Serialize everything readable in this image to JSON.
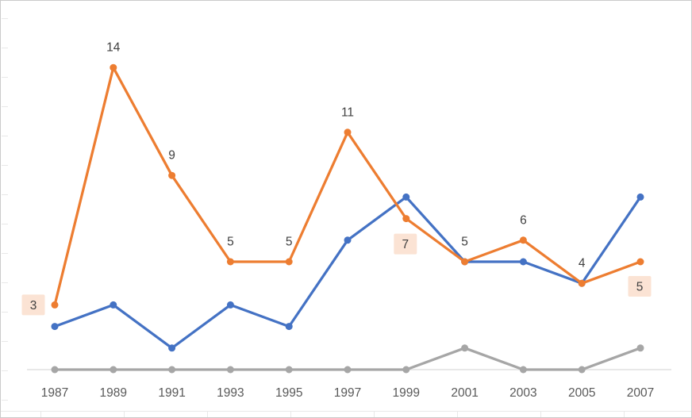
{
  "chart_data": {
    "type": "line",
    "title": "",
    "xlabel": "",
    "ylabel": "",
    "categories": [
      "1987",
      "1989",
      "1991",
      "1993",
      "1995",
      "1997",
      "1999",
      "2001",
      "2003",
      "2005",
      "2007"
    ],
    "series": [
      {
        "name": "gray-series",
        "color": "#a6a6a6",
        "values": [
          0,
          0,
          0,
          0,
          0,
          0,
          0,
          1,
          0,
          0,
          1
        ],
        "labels": null
      },
      {
        "name": "blue-series",
        "color": "#4472c4",
        "values": [
          2,
          3,
          1,
          3,
          2,
          6,
          8,
          5,
          5,
          4,
          8
        ],
        "labels": null
      },
      {
        "name": "orange-series",
        "color": "#ed7d31",
        "values": [
          3,
          14,
          9,
          5,
          5,
          11,
          7,
          5,
          6,
          4,
          5
        ],
        "labels": [
          {
            "text": "3",
            "highlight": true,
            "dx": -27,
            "dy": 0
          },
          {
            "text": "14",
            "highlight": false
          },
          {
            "text": "9",
            "highlight": false
          },
          {
            "text": "5",
            "highlight": false
          },
          {
            "text": "5",
            "highlight": false
          },
          {
            "text": "11",
            "highlight": false
          },
          {
            "text": "7",
            "highlight": true,
            "dx": -1,
            "dy": 32
          },
          {
            "text": "5",
            "highlight": false
          },
          {
            "text": "6",
            "highlight": false
          },
          {
            "text": "4",
            "highlight": false
          },
          {
            "text": "5",
            "highlight": true,
            "dx": -1,
            "dy": 31
          }
        ]
      }
    ],
    "ylim": [
      0,
      15
    ],
    "grid": false,
    "legend": "none",
    "axis_color": "#d9d9d9",
    "label_color": "#404040",
    "tick_color": "#595959",
    "highlight_bg": "#fbe3d4"
  }
}
